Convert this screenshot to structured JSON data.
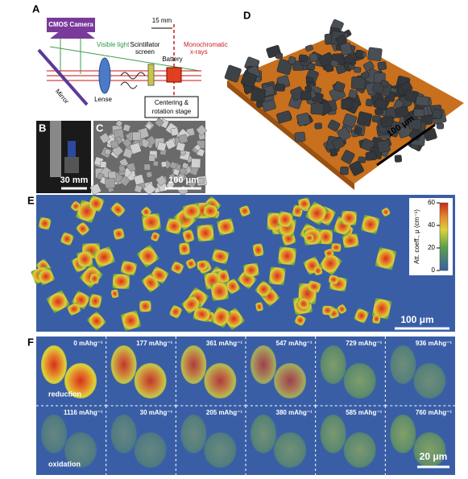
{
  "panel_labels": [
    "A",
    "B",
    "C",
    "D",
    "E",
    "F"
  ],
  "setup": {
    "camera": "CMOS Camera",
    "visible_light": "Visible light",
    "distance": "15 mm",
    "scintillator": [
      "Scintillator",
      "screen"
    ],
    "xrays": [
      "Monochromatic",
      "x-rays"
    ],
    "battery": "Battery",
    "mirror": "Mirror",
    "lense": "Lense",
    "stage": [
      "Centering &",
      "rotation stage"
    ]
  },
  "photo_scale": "30 mm",
  "sem_scale": "100 μm",
  "render_scale": "100 μm",
  "map": {
    "scale": "100 μm",
    "colorbar": {
      "label": "Att. coeff., μ (cm⁻¹)",
      "range": [
        0,
        60
      ],
      "ticks": [
        0,
        20,
        40,
        60
      ]
    }
  },
  "sequence": {
    "states": [
      "0 mAhg⁻¹",
      "177 mAhg⁻¹",
      "361 mAhg⁻¹",
      "547 mAhg⁻¹",
      "729 mAhg⁻¹",
      "936 mAhg⁻¹",
      "1116 mAhg⁻¹",
      "30 mAhg⁻¹",
      "205 mAhg⁻¹",
      "380 mAhg⁻¹",
      "585 mAhg⁻¹",
      "760 mAhg⁻¹"
    ],
    "directions": [
      "reduction",
      "oxidation"
    ],
    "scale": "20 μm"
  }
}
